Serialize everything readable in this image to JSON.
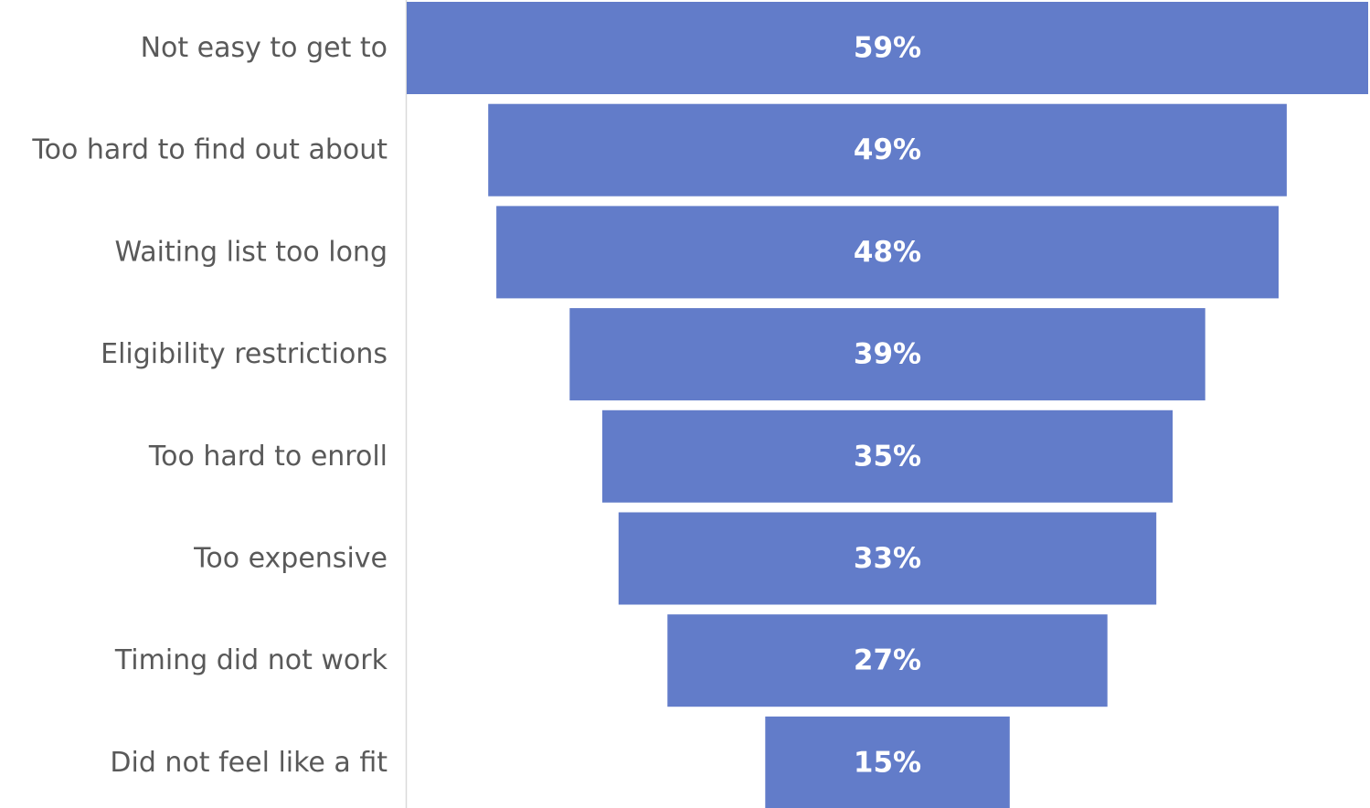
{
  "chart_data": {
    "type": "bar",
    "subtype": "funnel",
    "orientation": "horizontal",
    "categories": [
      "Not easy to get to",
      "Too hard to find out about",
      "Waiting list too long",
      "Eligibility restrictions",
      "Too hard to enroll",
      "Too expensive",
      "Timing did not work",
      "Did not feel like a fit"
    ],
    "values": [
      59,
      49,
      48,
      39,
      35,
      33,
      27,
      15
    ],
    "value_labels": [
      "59%",
      "49%",
      "48%",
      "39%",
      "35%",
      "33%",
      "27%",
      "15%"
    ],
    "value_unit": "%",
    "bar_color": "#627CC9",
    "axis_line_color": "#D9D9D9",
    "label_color": "#595959",
    "title": "",
    "xlabel": "",
    "ylabel": "",
    "grid": false,
    "legend": "none"
  }
}
